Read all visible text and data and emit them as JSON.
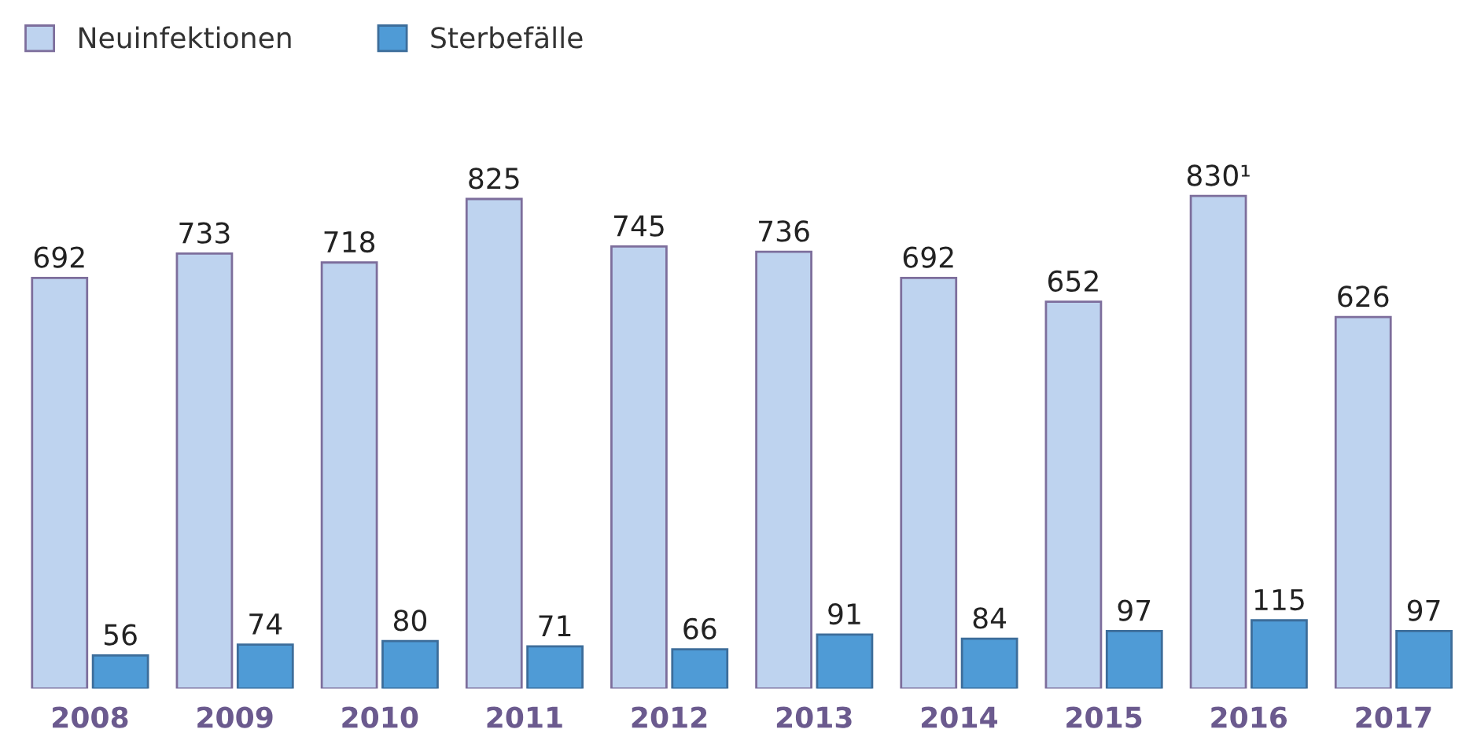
{
  "chart_data": {
    "type": "bar",
    "categories": [
      "2008",
      "2009",
      "2010",
      "2011",
      "2012",
      "2013",
      "2014",
      "2015",
      "2016",
      "2017"
    ],
    "series": [
      {
        "name": "Neuinfektionen",
        "color": "#bed3ef",
        "values": [
          692,
          733,
          718,
          825,
          745,
          736,
          692,
          652,
          830,
          626
        ],
        "value_labels": [
          "692",
          "733",
          "718",
          "825",
          "745",
          "736",
          "692",
          "652",
          "830¹",
          "626"
        ]
      },
      {
        "name": "Sterbefälle",
        "color": "#4f9bd6",
        "values": [
          56,
          74,
          80,
          71,
          66,
          91,
          84,
          97,
          115,
          97
        ],
        "value_labels": [
          "56",
          "74",
          "80",
          "71",
          "66",
          "91",
          "84",
          "97",
          "115",
          "97"
        ]
      }
    ],
    "tick_labels": "x",
    "grid": false,
    "legend": "top left"
  }
}
